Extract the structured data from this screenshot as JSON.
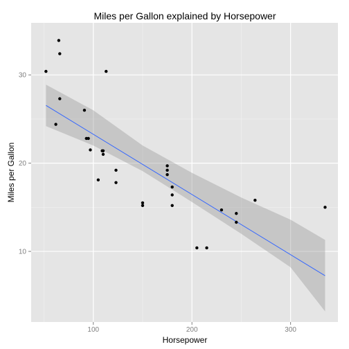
{
  "chart_data": {
    "type": "scatter",
    "title": "Miles per Gallon explained by Horsepower",
    "xlabel": "Horsepower",
    "ylabel": "Miles per Gallon",
    "xlim": [
      37,
      348
    ],
    "ylim": [
      2.0,
      35.9
    ],
    "xticks": [
      100,
      200,
      300
    ],
    "yticks": [
      10,
      20,
      30
    ],
    "xminor": [
      50,
      150,
      250
    ],
    "yminor": [
      15,
      25
    ],
    "grid": true,
    "colors": {
      "panel": "#e5e5e5",
      "grid_major": "#ffffff",
      "grid_minor": "#f2f2f2",
      "points": "#000000",
      "trend_line": "#3366ff",
      "confidence_band": "#999999"
    },
    "points": [
      {
        "x": 52,
        "y": 30.4
      },
      {
        "x": 62,
        "y": 24.4
      },
      {
        "x": 65,
        "y": 33.9
      },
      {
        "x": 66,
        "y": 32.4
      },
      {
        "x": 66,
        "y": 27.3
      },
      {
        "x": 91,
        "y": 26.0
      },
      {
        "x": 93,
        "y": 22.8
      },
      {
        "x": 95,
        "y": 22.8
      },
      {
        "x": 97,
        "y": 21.5
      },
      {
        "x": 105,
        "y": 18.1
      },
      {
        "x": 109,
        "y": 21.4
      },
      {
        "x": 110,
        "y": 21.0
      },
      {
        "x": 110,
        "y": 21.4
      },
      {
        "x": 113,
        "y": 30.4
      },
      {
        "x": 123,
        "y": 19.2
      },
      {
        "x": 123,
        "y": 17.8
      },
      {
        "x": 150,
        "y": 15.5
      },
      {
        "x": 150,
        "y": 15.2
      },
      {
        "x": 175,
        "y": 19.7
      },
      {
        "x": 175,
        "y": 19.2
      },
      {
        "x": 175,
        "y": 18.7
      },
      {
        "x": 180,
        "y": 17.3
      },
      {
        "x": 180,
        "y": 16.4
      },
      {
        "x": 180,
        "y": 15.2
      },
      {
        "x": 205,
        "y": 10.4
      },
      {
        "x": 215,
        "y": 10.4
      },
      {
        "x": 230,
        "y": 14.7
      },
      {
        "x": 245,
        "y": 14.3
      },
      {
        "x": 245,
        "y": 13.3
      },
      {
        "x": 264,
        "y": 15.8
      },
      {
        "x": 335,
        "y": 15.0
      }
    ],
    "trend_line": {
      "method": "linear fit",
      "x": [
        52,
        335
      ],
      "y": [
        26.55,
        7.24
      ]
    },
    "confidence_band": {
      "x": [
        52,
        100,
        150,
        200,
        250,
        300,
        335
      ],
      "lower": [
        24.2,
        22.0,
        19.1,
        15.6,
        12.0,
        8.2,
        3.2
      ],
      "upper": [
        28.9,
        26.0,
        22.0,
        18.9,
        16.1,
        13.6,
        11.3
      ]
    }
  }
}
